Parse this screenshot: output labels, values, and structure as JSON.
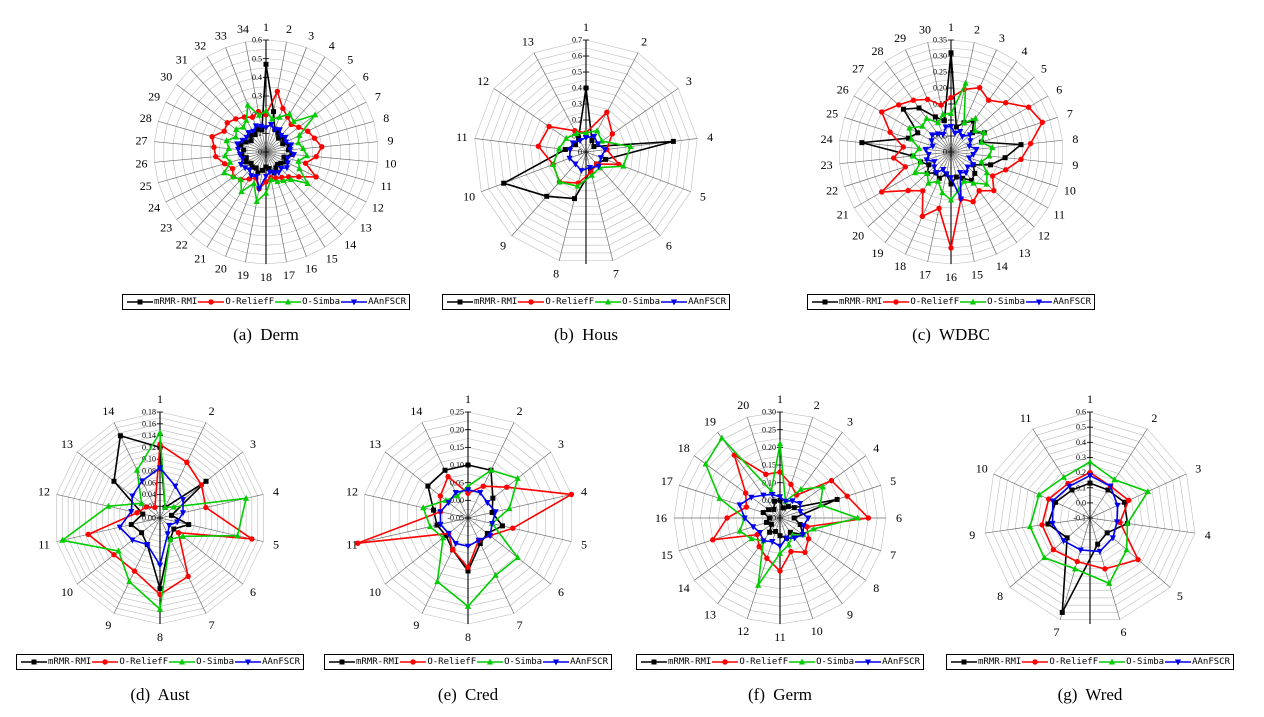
{
  "figure": {
    "background": "#ffffff"
  },
  "series_styles": [
    {
      "name": "mRMR-RMI",
      "color": "#000000",
      "marker": "square"
    },
    {
      "name": "O-ReliefF",
      "color": "#ff0000",
      "marker": "circle"
    },
    {
      "name": "O-Simba",
      "color": "#00cc00",
      "marker": "triangle-up"
    },
    {
      "name": "AAnFSCR",
      "color": "#0000ee",
      "marker": "triangle-down"
    }
  ],
  "chart_data": [
    {
      "type": "radar",
      "caption": "(a) Derm",
      "legend_position": "bottom",
      "axes": [
        1,
        2,
        3,
        4,
        5,
        6,
        7,
        8,
        9,
        10,
        11,
        12,
        13,
        14,
        15,
        16,
        17,
        18,
        19,
        20,
        21,
        22,
        23,
        24,
        25,
        26,
        27,
        28,
        29,
        30,
        31,
        32,
        33,
        34
      ],
      "r_min": 0,
      "r_max": 0.6,
      "ring_step": 0.05,
      "ticks": [
        {
          "value": 0.6,
          "label": "0.6"
        },
        {
          "value": 0.5,
          "label": "0.5"
        },
        {
          "value": 0.4,
          "label": "0.4"
        },
        {
          "value": 0.3,
          "label": "0.3"
        },
        {
          "value": 0.2,
          "label": "0.2"
        },
        {
          "value": 0.1,
          "label": "0.1"
        },
        {
          "value": 0.0,
          "label": "0"
        }
      ],
      "series": [
        {
          "name": "mRMR-RMI",
          "values": [
            0.47,
            0.22,
            0.13,
            0.12,
            0.1,
            0.12,
            0.1,
            0.13,
            0.12,
            0.14,
            0.1,
            0.12,
            0.1,
            0.09,
            0.1,
            0.12,
            0.09,
            0.08,
            0.1,
            0.12,
            0.1,
            0.11,
            0.1,
            0.12,
            0.11,
            0.13,
            0.12,
            0.14,
            0.12,
            0.1,
            0.12,
            0.11,
            0.13,
            0.12
          ]
        },
        {
          "name": "O-ReliefF",
          "values": [
            0.2,
            0.33,
            0.25,
            0.22,
            0.2,
            0.22,
            0.25,
            0.27,
            0.3,
            0.27,
            0.22,
            0.3,
            0.22,
            0.18,
            0.16,
            0.15,
            0.14,
            0.16,
            0.2,
            0.15,
            0.17,
            0.2,
            0.22,
            0.2,
            0.23,
            0.27,
            0.28,
            0.3,
            0.25,
            0.26,
            0.24,
            0.22,
            0.2,
            0.22
          ]
        },
        {
          "name": "O-Simba",
          "values": [
            0.22,
            0.18,
            0.2,
            0.24,
            0.22,
            0.33,
            0.2,
            0.18,
            0.2,
            0.22,
            0.18,
            0.2,
            0.28,
            0.2,
            0.18,
            0.17,
            0.15,
            0.22,
            0.27,
            0.18,
            0.25,
            0.2,
            0.22,
            0.25,
            0.2,
            0.22,
            0.2,
            0.22,
            0.18,
            0.2,
            0.18,
            0.2,
            0.27,
            0.2
          ]
        },
        {
          "name": "AAnFSCR",
          "values": [
            0.13,
            0.15,
            0.13,
            0.14,
            0.12,
            0.13,
            0.12,
            0.14,
            0.13,
            0.15,
            0.12,
            0.13,
            0.14,
            0.12,
            0.13,
            0.12,
            0.11,
            0.13,
            0.2,
            0.14,
            0.15,
            0.13,
            0.14,
            0.15,
            0.13,
            0.14,
            0.15,
            0.16,
            0.14,
            0.13,
            0.14,
            0.13,
            0.15,
            0.14
          ]
        }
      ]
    },
    {
      "type": "radar",
      "caption": "(b) Hous",
      "legend_position": "bottom",
      "axes": [
        1,
        2,
        3,
        4,
        5,
        6,
        7,
        8,
        9,
        10,
        11,
        12,
        13
      ],
      "r_min": 0,
      "r_max": 0.7,
      "ring_step": 0.05,
      "ticks": [
        {
          "value": 0.7,
          "label": "0.7"
        },
        {
          "value": 0.6,
          "label": "0.6"
        },
        {
          "value": 0.5,
          "label": "0.5"
        },
        {
          "value": 0.4,
          "label": "0.4"
        },
        {
          "value": 0.3,
          "label": "0.3"
        },
        {
          "value": 0.2,
          "label": "0.2"
        },
        {
          "value": 0.1,
          "label": "0.1"
        },
        {
          "value": 0.0,
          "label": "0"
        }
      ],
      "series": [
        {
          "name": "mRMR-RMI",
          "values": [
            0.4,
            0.08,
            0.06,
            0.55,
            0.13,
            0.1,
            0.12,
            0.3,
            0.37,
            0.55,
            0.13,
            0.08,
            0.1
          ]
        },
        {
          "name": "O-ReliefF",
          "values": [
            0.12,
            0.28,
            0.2,
            0.13,
            0.22,
            0.1,
            0.13,
            0.2,
            0.25,
            0.22,
            0.3,
            0.28,
            0.15
          ]
        },
        {
          "name": "O-Simba",
          "values": [
            0.12,
            0.15,
            0.12,
            0.28,
            0.25,
            0.13,
            0.15,
            0.22,
            0.25,
            0.22,
            0.17,
            0.15,
            0.13
          ]
        },
        {
          "name": "AAnFSCR",
          "values": [
            0.09,
            0.11,
            0.09,
            0.12,
            0.1,
            0.12,
            0.1,
            0.12,
            0.1,
            0.11,
            0.1,
            0.1,
            0.08
          ]
        }
      ]
    },
    {
      "type": "radar",
      "caption": "(c) WDBC",
      "legend_position": "bottom",
      "axes": [
        1,
        2,
        3,
        4,
        5,
        6,
        7,
        8,
        9,
        10,
        11,
        12,
        13,
        14,
        15,
        16,
        17,
        18,
        19,
        20,
        21,
        22,
        23,
        24,
        25,
        26,
        27,
        28,
        29,
        30
      ],
      "r_min": 0,
      "r_max": 0.35,
      "ring_step": 0.025,
      "ticks": [
        {
          "value": 0.35,
          "label": "0.35"
        },
        {
          "value": 0.3,
          "label": "0.30"
        },
        {
          "value": 0.25,
          "label": "0.25"
        },
        {
          "value": 0.2,
          "label": "0.20"
        },
        {
          "value": 0.15,
          "label": "0.15"
        },
        {
          "value": 0.1,
          "label": "0.10"
        },
        {
          "value": 0.05,
          "label": "0.05"
        },
        {
          "value": 0.0,
          "label": "0"
        }
      ],
      "series": [
        {
          "name": "mRMR-RMI",
          "values": [
            0.31,
            0.08,
            0.1,
            0.12,
            0.09,
            0.12,
            0.1,
            0.22,
            0.17,
            0.13,
            0.08,
            0.1,
            0.11,
            0.09,
            0.08,
            0.1,
            0.07,
            0.09,
            0.08,
            0.1,
            0.08,
            0.1,
            0.12,
            0.28,
            0.14,
            0.12,
            0.2,
            0.17,
            0.12,
            0.1
          ]
        },
        {
          "name": "O-ReliefF",
          "values": [
            0.17,
            0.2,
            0.22,
            0.2,
            0.23,
            0.28,
            0.3,
            0.25,
            0.22,
            0.18,
            0.15,
            0.18,
            0.15,
            0.17,
            0.15,
            0.3,
            0.18,
            0.22,
            0.15,
            0.18,
            0.25,
            0.15,
            0.18,
            0.15,
            0.2,
            0.25,
            0.22,
            0.2,
            0.18,
            0.15
          ]
        },
        {
          "name": "O-Simba",
          "values": [
            0.12,
            0.22,
            0.1,
            0.13,
            0.1,
            0.12,
            0.1,
            0.13,
            0.12,
            0.1,
            0.13,
            0.15,
            0.12,
            0.1,
            0.12,
            0.15,
            0.13,
            0.1,
            0.12,
            0.1,
            0.13,
            0.1,
            0.12,
            0.1,
            0.13,
            0.15,
            0.12,
            0.13,
            0.1,
            0.12
          ]
        },
        {
          "name": "AAnFSCR",
          "values": [
            0.08,
            0.06,
            0.07,
            0.06,
            0.08,
            0.07,
            0.06,
            0.08,
            0.07,
            0.06,
            0.08,
            0.07,
            0.08,
            0.07,
            0.15,
            0.08,
            0.07,
            0.06,
            0.08,
            0.07,
            0.06,
            0.08,
            0.07,
            0.08,
            0.06,
            0.07,
            0.08,
            0.07,
            0.06,
            0.08
          ]
        }
      ]
    },
    {
      "type": "radar",
      "caption": "(d) Aust",
      "legend_position": "bottom",
      "axes": [
        1,
        2,
        3,
        4,
        5,
        6,
        7,
        8,
        9,
        10,
        11,
        12,
        13,
        14
      ],
      "r_min": 0,
      "r_max": 0.18,
      "ring_step": 0.01,
      "ticks": [
        {
          "value": 0.18,
          "label": "0.18"
        },
        {
          "value": 0.16,
          "label": "0.16"
        },
        {
          "value": 0.14,
          "label": "0.14"
        },
        {
          "value": 0.12,
          "label": "0.12"
        },
        {
          "value": 0.1,
          "label": "0.10"
        },
        {
          "value": 0.08,
          "label": "0.08"
        },
        {
          "value": 0.06,
          "label": "0.06"
        },
        {
          "value": 0.04,
          "label": "0.04"
        },
        {
          "value": 0.02,
          "label": "0.02"
        },
        {
          "value": 0.0,
          "label": "0.00"
        }
      ],
      "series": [
        {
          "name": "mRMR-RMI",
          "values": [
            0.12,
            0.02,
            0.1,
            0.02,
            0.05,
            0.03,
            0.04,
            0.12,
            0.05,
            0.04,
            0.05,
            0.03,
            0.1,
            0.155
          ]
        },
        {
          "name": "O-ReliefF",
          "values": [
            0.125,
            0.105,
            0.09,
            0.08,
            0.16,
            0.04,
            0.11,
            0.13,
            0.1,
            0.1,
            0.125,
            0.04,
            0.03,
            0.02
          ]
        },
        {
          "name": "O-Simba",
          "values": [
            0.145,
            0.02,
            0.03,
            0.15,
            0.135,
            0.05,
            0.04,
            0.155,
            0.12,
            0.09,
            0.17,
            0.09,
            0.04,
            0.09
          ]
        },
        {
          "name": "AAnFSCR",
          "values": [
            0.085,
            0.06,
            0.05,
            0.04,
            0.03,
            0.02,
            0.03,
            0.08,
            0.05,
            0.06,
            0.07,
            0.05,
            0.06,
            0.07
          ]
        }
      ]
    },
    {
      "type": "radar",
      "caption": "(e) Cred",
      "legend_position": "bottom",
      "axes": [
        1,
        2,
        3,
        4,
        5,
        6,
        7,
        8,
        9,
        10,
        11,
        12,
        13,
        14
      ],
      "r_min": -0.05,
      "r_max": 0.25,
      "ring_step": 0.025,
      "ticks": [
        {
          "value": 0.25,
          "label": "0.25"
        },
        {
          "value": 0.2,
          "label": "0.20"
        },
        {
          "value": 0.15,
          "label": "0.15"
        },
        {
          "value": 0.1,
          "label": "0.10"
        },
        {
          "value": 0.05,
          "label": "0.05"
        },
        {
          "value": 0.0,
          "label": "0.00"
        },
        {
          "value": -0.05,
          "label": "-0.05"
        }
      ],
      "series": [
        {
          "name": "mRMR-RMI",
          "values": [
            0.1,
            0.1,
            0.04,
            0.02,
            0.05,
            0.02,
            0.03,
            0.1,
            0.05,
            0.03,
            0.04,
            0.05,
            0.095,
            0.1
          ]
        },
        {
          "name": "O-ReliefF",
          "values": [
            0.02,
            0.05,
            0.09,
            0.25,
            0.08,
            0.03,
            0.02,
            0.09,
            0.05,
            0.02,
            0.27,
            0.03,
            0.05,
            0.08
          ]
        },
        {
          "name": "O-Simba",
          "values": [
            0.04,
            0.1,
            0.13,
            0.07,
            0.02,
            0.13,
            0.13,
            0.2,
            0.15,
            0.04,
            0.06,
            0.08,
            0.03,
            0.02
          ]
        },
        {
          "name": "AAnFSCR",
          "values": [
            0.03,
            0.03,
            0.02,
            0.03,
            0.02,
            0.03,
            0.02,
            0.03,
            0.03,
            0.02,
            0.03,
            0.03,
            0.02,
            0.03
          ]
        }
      ]
    },
    {
      "type": "radar",
      "caption": "(f) Germ",
      "legend_position": "bottom",
      "axes": [
        1,
        2,
        3,
        4,
        5,
        6,
        7,
        8,
        9,
        10,
        11,
        12,
        13,
        14,
        15,
        16,
        17,
        18,
        19,
        20
      ],
      "r_min": 0,
      "r_max": 0.3,
      "ring_step": 0.025,
      "ticks": [
        {
          "value": 0.3,
          "label": "0.30"
        },
        {
          "value": 0.25,
          "label": "0.25"
        },
        {
          "value": 0.2,
          "label": "0.20"
        },
        {
          "value": 0.15,
          "label": "0.15"
        },
        {
          "value": 0.1,
          "label": "0.10"
        },
        {
          "value": 0.05,
          "label": "0.05"
        },
        {
          "value": 0.0,
          "label": "0"
        }
      ],
      "series": [
        {
          "name": "mRMR-RMI",
          "values": [
            0.05,
            0.03,
            0.04,
            0.05,
            0.17,
            0.04,
            0.06,
            0.08,
            0.05,
            0.06,
            0.05,
            0.04,
            0.05,
            0.03,
            0.04,
            0.03,
            0.05,
            0.04,
            0.03,
            0.05
          ]
        },
        {
          "name": "O-ReliefF",
          "values": [
            0.13,
            0.1,
            0.08,
            0.18,
            0.2,
            0.25,
            0.08,
            0.1,
            0.12,
            0.1,
            0.15,
            0.12,
            0.1,
            0.08,
            0.2,
            0.15,
            0.1,
            0.12,
            0.22,
            0.13
          ]
        },
        {
          "name": "O-Simba",
          "values": [
            0.21,
            0.05,
            0.1,
            0.15,
            0.12,
            0.22,
            0.1,
            0.08,
            0.06,
            0.08,
            0.1,
            0.2,
            0.08,
            0.1,
            0.12,
            0.1,
            0.18,
            0.26,
            0.28,
            0.08
          ]
        },
        {
          "name": "AAnFSCR",
          "values": [
            0.06,
            0.05,
            0.06,
            0.07,
            0.06,
            0.08,
            0.07,
            0.08,
            0.07,
            0.06,
            0.08,
            0.07,
            0.08,
            0.07,
            0.08,
            0.1,
            0.12,
            0.1,
            0.08,
            0.07
          ]
        }
      ]
    },
    {
      "type": "radar",
      "caption": "(g) Wred",
      "legend_position": "bottom",
      "axes": [
        1,
        2,
        3,
        4,
        5,
        6,
        7,
        8,
        9,
        10,
        11
      ],
      "r_min": -0.1,
      "r_max": 0.6,
      "ring_step": 0.05,
      "ticks": [
        {
          "value": 0.6,
          "label": "0.6"
        },
        {
          "value": 0.5,
          "label": "0.5"
        },
        {
          "value": 0.4,
          "label": "0.4"
        },
        {
          "value": 0.3,
          "label": "0.3"
        },
        {
          "value": 0.2,
          "label": "0.2"
        },
        {
          "value": 0.1,
          "label": "0.1"
        },
        {
          "value": 0.0,
          "label": "0.0"
        },
        {
          "value": -0.1,
          "label": "-0.1"
        }
      ],
      "series": [
        {
          "name": "mRMR-RMI",
          "values": [
            0.13,
            0.12,
            0.15,
            0.15,
            0.05,
            0.08,
            0.55,
            0.1,
            0.18,
            0.15,
            0.12
          ]
        },
        {
          "name": "O-ReliefF",
          "values": [
            0.2,
            0.15,
            0.18,
            0.1,
            0.32,
            0.25,
            0.2,
            0.22,
            0.22,
            0.2,
            0.17
          ]
        },
        {
          "name": "O-Simba",
          "values": [
            0.27,
            0.2,
            0.32,
            0.15,
            0.22,
            0.35,
            0.25,
            0.3,
            0.3,
            0.27,
            0.22
          ]
        },
        {
          "name": "AAnFSCR",
          "values": [
            0.18,
            0.15,
            0.1,
            0.08,
            0.1,
            0.13,
            0.12,
            0.13,
            0.15,
            0.17,
            0.15
          ]
        }
      ]
    }
  ]
}
